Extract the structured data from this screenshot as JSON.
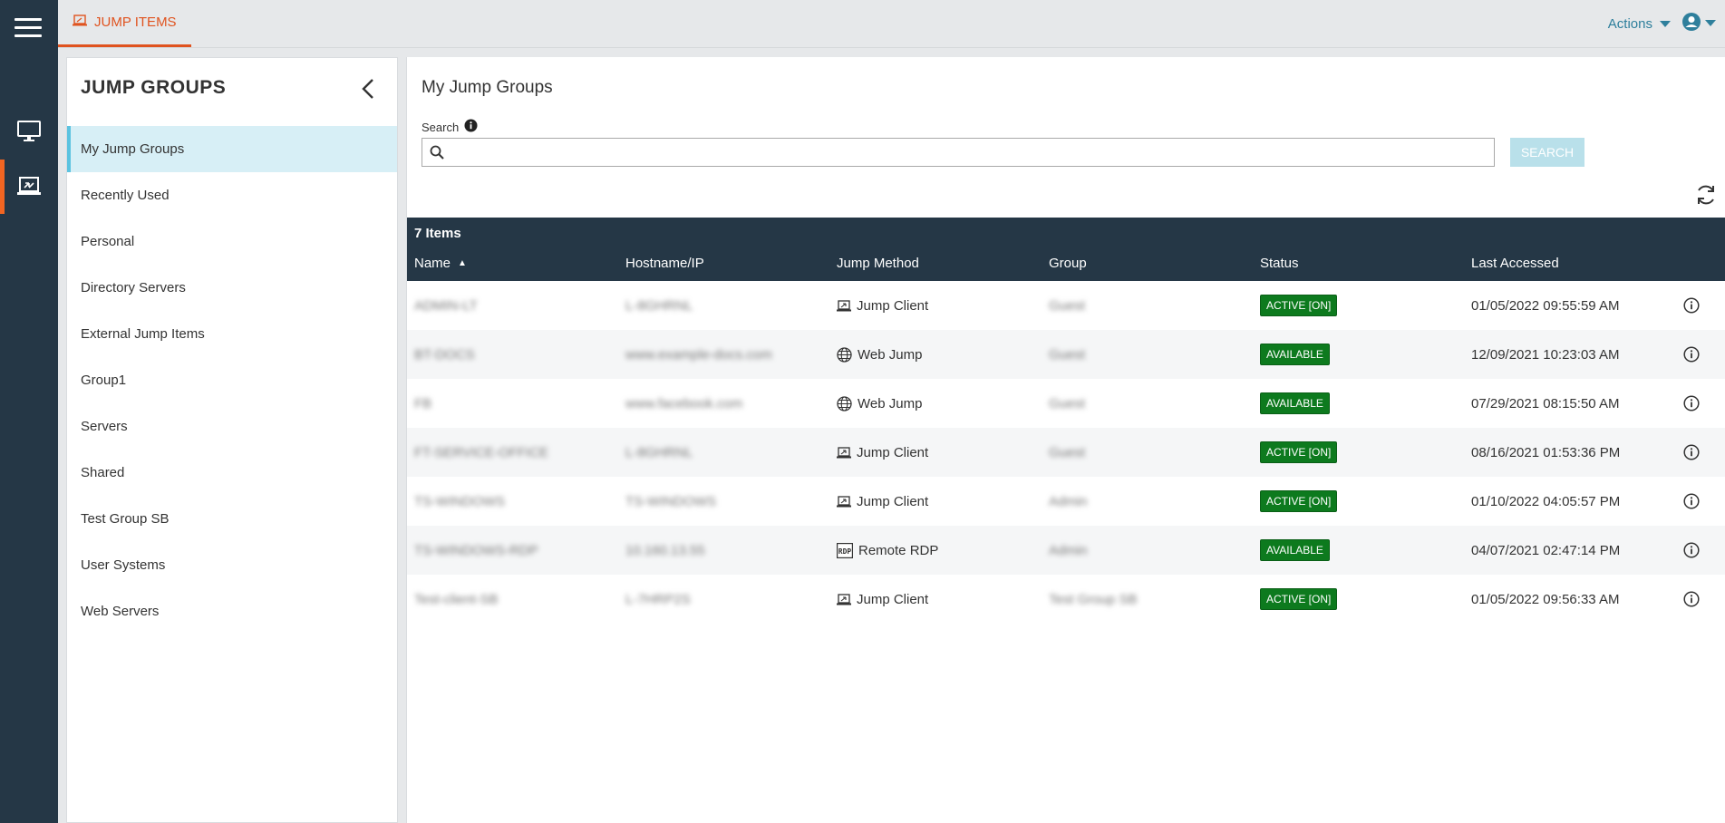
{
  "rail": {
    "icons": [
      "menu-icon",
      "monitor-icon",
      "jump-items-icon"
    ]
  },
  "topbar": {
    "tab_label": "JUMP ITEMS",
    "actions_label": "Actions"
  },
  "sidebar": {
    "title": "JUMP GROUPS",
    "items": [
      {
        "label": "My Jump Groups",
        "selected": true
      },
      {
        "label": "Recently Used"
      },
      {
        "label": "Personal"
      },
      {
        "label": "Directory Servers"
      },
      {
        "label": "External Jump Items"
      },
      {
        "label": "Group1"
      },
      {
        "label": "Servers"
      },
      {
        "label": "Shared"
      },
      {
        "label": "Test Group SB"
      },
      {
        "label": "User Systems"
      },
      {
        "label": "Web Servers"
      }
    ]
  },
  "main": {
    "title": "My Jump Groups",
    "search_label": "Search",
    "search_value": "",
    "search_button": "SEARCH",
    "item_count": "7 Items",
    "columns": {
      "name": "Name",
      "hostname": "Hostname/IP",
      "method": "Jump Method",
      "group": "Group",
      "status": "Status",
      "last_accessed": "Last Accessed"
    },
    "rows": [
      {
        "name": "ADMIN-LT",
        "hostname": "L-8GHRNL",
        "method": "Jump Client",
        "method_icon": "jump-client-icon",
        "group": "Guest",
        "status": "ACTIVE [ON]",
        "last_accessed": "01/05/2022 09:55:59 AM"
      },
      {
        "name": "BT-DOCS",
        "hostname": "www.example-docs.com",
        "method": "Web Jump",
        "method_icon": "globe-icon",
        "group": "Guest",
        "status": "AVAILABLE",
        "last_accessed": "12/09/2021 10:23:03 AM"
      },
      {
        "name": "FB",
        "hostname": "www.facebook.com",
        "method": "Web Jump",
        "method_icon": "globe-icon",
        "group": "Guest",
        "status": "AVAILABLE",
        "last_accessed": "07/29/2021 08:15:50 AM"
      },
      {
        "name": "FT-SERVICE-OFFICE",
        "hostname": "L-8GHRNL",
        "method": "Jump Client",
        "method_icon": "jump-client-icon",
        "group": "Guest",
        "status": "ACTIVE [ON]",
        "last_accessed": "08/16/2021 01:53:36 PM"
      },
      {
        "name": "TS-WINDOWS",
        "hostname": "TS-WINDOWS",
        "method": "Jump Client",
        "method_icon": "jump-client-icon",
        "group": "Admin",
        "status": "ACTIVE [ON]",
        "last_accessed": "01/10/2022 04:05:57 PM"
      },
      {
        "name": "TS-WINDOWS-RDP",
        "hostname": "10.160.13.55",
        "method": "Remote RDP",
        "method_icon": "rdp-icon",
        "group": "Admin",
        "status": "AVAILABLE",
        "last_accessed": "04/07/2021 02:47:14 PM"
      },
      {
        "name": "Test-client-SB",
        "hostname": "L-7HRP2S",
        "method": "Jump Client",
        "method_icon": "jump-client-icon",
        "group": "Test Group SB",
        "status": "ACTIVE [ON]",
        "last_accessed": "01/05/2022 09:56:33 AM"
      }
    ]
  },
  "colors": {
    "rail": "#253746",
    "accent": "#e0531f",
    "link": "#2e7f9c",
    "status_green": "#0d7a1e",
    "selected_bg": "#d7eff6",
    "selected_border": "#5cc3e0"
  }
}
